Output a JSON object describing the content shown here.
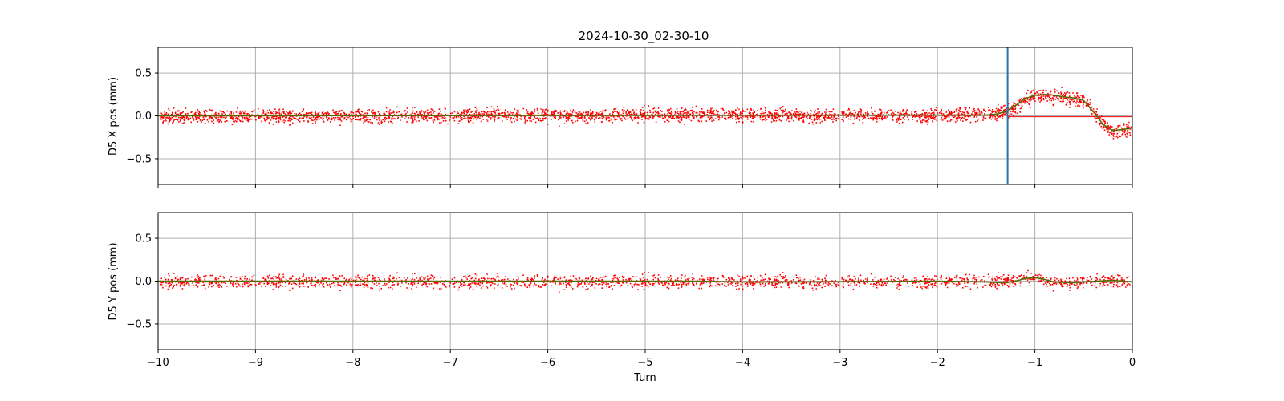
{
  "chart_data": [
    {
      "type": "scatter",
      "title": "2024-10-30_02-30-10",
      "xlabel": "",
      "ylabel": "D5 X pos (mm)",
      "xlim": [
        -10,
        0
      ],
      "ylim": [
        -0.8,
        0.8
      ],
      "x_ticks": [
        -10,
        -9,
        -8,
        -7,
        -6,
        -5,
        -4,
        -3,
        -2,
        -1,
        0
      ],
      "y_ticks": [
        -0.5,
        0.0,
        0.5
      ],
      "y_tick_labels": [
        "−0.5",
        "0.0",
        "0.5"
      ],
      "x_tick_labels": [
        "",
        "",
        "",
        "",
        "",
        "",
        "",
        "",
        "",
        "",
        ""
      ],
      "grid": true,
      "series": [
        {
          "style": "points",
          "color": "#ff0000",
          "description_of_shape": "per-turn noise band",
          "x": [
            -10,
            -9.5,
            -9,
            -8.5,
            -8,
            -7.5,
            -7,
            -6.5,
            -6,
            -5.5,
            -5,
            -4.5,
            -4,
            -3.5,
            -3,
            -2.5,
            -2,
            -1.5,
            -1.4,
            -1.3,
            -1.2,
            -1.1,
            -1.0,
            -0.9,
            -0.8,
            -0.7,
            -0.6,
            -0.5,
            -0.4,
            -0.3,
            -0.2,
            -0.1,
            0
          ],
          "y": [
            0.0,
            0.0,
            0.0,
            0.0,
            0.0,
            0.01,
            0.01,
            0.02,
            0.01,
            0.01,
            0.02,
            0.02,
            0.02,
            0.01,
            0.01,
            0.01,
            0.01,
            0.02,
            0.03,
            0.05,
            0.12,
            0.2,
            0.24,
            0.25,
            0.24,
            0.22,
            0.21,
            0.18,
            0.05,
            -0.1,
            -0.18,
            -0.16,
            -0.15
          ],
          "spread": 0.07
        },
        {
          "style": "line",
          "color": "#556b00",
          "x": [
            -10,
            -1.5,
            -1.4,
            -1.3,
            -1.2,
            -1.1,
            -1.0,
            -0.9,
            -0.8,
            -0.7,
            -0.6,
            -0.5,
            -0.4,
            -0.3,
            -0.2,
            -0.1,
            0
          ],
          "y": [
            0.0,
            0.01,
            0.02,
            0.05,
            0.12,
            0.2,
            0.24,
            0.25,
            0.24,
            0.22,
            0.21,
            0.18,
            0.05,
            -0.1,
            -0.17,
            -0.16,
            -0.14
          ]
        }
      ],
      "vline": {
        "x": -1.28,
        "color": "#1f77b4"
      },
      "hline": {
        "x_start": -1.28,
        "x_end": 0,
        "y": -0.01,
        "color": "#ff0000"
      }
    },
    {
      "type": "scatter",
      "title": "",
      "xlabel": "Turn",
      "ylabel": "D5 Y pos (mm)",
      "xlim": [
        -10,
        0
      ],
      "ylim": [
        -0.8,
        0.8
      ],
      "x_ticks": [
        -10,
        -9,
        -8,
        -7,
        -6,
        -5,
        -4,
        -3,
        -2,
        -1,
        0
      ],
      "x_tick_labels": [
        "−10",
        "−9",
        "−8",
        "−7",
        "−6",
        "−5",
        "−4",
        "−3",
        "−2",
        "−1",
        "0"
      ],
      "y_ticks": [
        -0.5,
        0.0,
        0.5
      ],
      "y_tick_labels": [
        "−0.5",
        "0.0",
        "0.5"
      ],
      "grid": true,
      "series": [
        {
          "style": "points",
          "color": "#ff0000",
          "x": [
            -10,
            -9,
            -8,
            -7,
            -6,
            -5,
            -4,
            -3,
            -2,
            -1.5,
            -1.3,
            -1.2,
            -1.1,
            -1.0,
            -0.9,
            -0.8,
            -0.5,
            -0.3,
            -0.2,
            0
          ],
          "y": [
            0.0,
            0.0,
            0.0,
            0.0,
            0.0,
            0.0,
            0.0,
            0.0,
            0.0,
            0.0,
            0.0,
            0.03,
            0.05,
            0.05,
            0.01,
            -0.02,
            0.0,
            0.01,
            0.02,
            0.0
          ],
          "spread": 0.07
        },
        {
          "style": "line",
          "color": "#556b00",
          "x": [
            -10,
            -4.5,
            -4.0,
            -3.5,
            -2.0,
            -1.5,
            -1.3,
            -1.2,
            -1.1,
            -1.0,
            -0.9,
            -0.8,
            -0.6,
            -0.5,
            -0.2,
            0
          ],
          "y": [
            0.0,
            0.0,
            -0.01,
            -0.01,
            0.0,
            -0.01,
            -0.02,
            0.0,
            0.03,
            0.04,
            0.02,
            -0.01,
            -0.02,
            -0.01,
            0.01,
            -0.01
          ]
        }
      ]
    }
  ]
}
